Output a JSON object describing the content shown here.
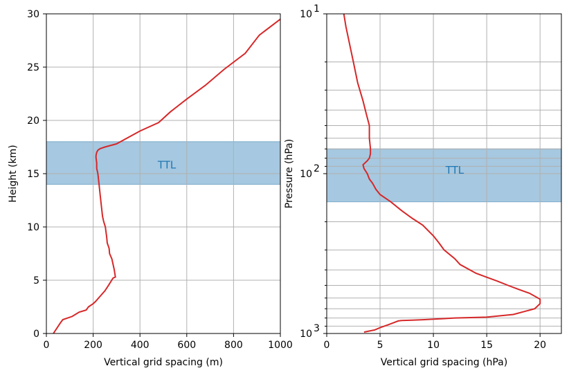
{
  "chart_data": [
    {
      "type": "line",
      "xlabel": "Vertical grid spacing (m)",
      "ylabel": "Height (km)",
      "xlim": [
        0,
        1000
      ],
      "ylim": [
        0,
        30
      ],
      "yscale": "linear",
      "grid": true,
      "xticks": [
        0,
        200,
        400,
        600,
        800,
        1000
      ],
      "yticks": [
        0,
        5,
        10,
        15,
        20,
        25,
        30
      ],
      "xtick_labels": [
        "0",
        "200",
        "400",
        "600",
        "800",
        "1000"
      ],
      "ytick_labels": [
        "0",
        "5",
        "10",
        "15",
        "20",
        "25",
        "30"
      ],
      "band": {
        "label": "TTL",
        "from": 14,
        "to": 18,
        "color": "#a6c8e0",
        "edge_color": "#7aaacb",
        "label_color": "#1f77b4",
        "label_x": 515,
        "label_y": 15.8
      },
      "series": [
        {
          "color": "#d62728",
          "x": [
            30,
            45,
            60,
            70,
            110,
            140,
            170,
            180,
            200,
            210,
            230,
            250,
            265,
            285,
            295,
            290,
            285,
            280,
            270,
            268,
            260,
            258,
            255,
            252,
            245,
            240,
            235,
            230,
            225,
            220,
            215,
            215,
            212,
            212,
            215,
            220,
            230,
            250,
            300,
            400,
            480,
            530,
            600,
            680,
            760,
            850,
            910,
            1000
          ],
          "y": [
            0,
            0.5,
            1.0,
            1.3,
            1.6,
            2.0,
            2.2,
            2.5,
            2.8,
            3.0,
            3.5,
            4.0,
            4.5,
            5.2,
            5.3,
            6.0,
            6.5,
            7.0,
            7.5,
            8.0,
            8.5,
            9.0,
            9.5,
            10.0,
            10.5,
            11.0,
            12.0,
            13.0,
            14.0,
            15.0,
            15.5,
            16.0,
            16.5,
            16.7,
            17.0,
            17.2,
            17.35,
            17.5,
            17.8,
            19.0,
            19.8,
            20.8,
            22.0,
            23.3,
            24.8,
            26.3,
            28.0,
            29.5
          ]
        }
      ]
    },
    {
      "type": "line",
      "xlabel": "Vertical grid spacing (hPa)",
      "ylabel": "Pressure (hPa)",
      "xlim": [
        0,
        22
      ],
      "ylim": [
        1000,
        10
      ],
      "yscale": "log",
      "grid": true,
      "xticks": [
        0,
        5,
        10,
        15,
        20
      ],
      "xtick_labels": [
        "0",
        "5",
        "10",
        "15",
        "20"
      ],
      "ytick_major": [
        10,
        100,
        1000
      ],
      "ytick_labels": [
        "10",
        "10",
        "10"
      ],
      "ytick_exponents": [
        "1",
        "2",
        "3"
      ],
      "ytick_minor": [
        20,
        30,
        40,
        50,
        60,
        70,
        80,
        90,
        200,
        300,
        400,
        500,
        600,
        700,
        800,
        900
      ],
      "band": {
        "label": "TTL",
        "from": 150,
        "to": 70,
        "color": "#a6c8e0",
        "edge_color": "#7aaacb",
        "label_color": "#1f77b4",
        "label_x": 12,
        "label_y": 95
      },
      "series": [
        {
          "color": "#d62728",
          "x": [
            1.6,
            1.8,
            2.1,
            2.5,
            2.9,
            3.4,
            3.7,
            4.0,
            4.0,
            4.1,
            4.1,
            4.0,
            3.8,
            3.4,
            3.5,
            3.8,
            4.0,
            4.3,
            4.6,
            5.0,
            6.0,
            7.0,
            8.0,
            9.0,
            10.0,
            10.5,
            11.0,
            12.0,
            12.5,
            14.0,
            14.8,
            16.0,
            17.0,
            18.0,
            19.0,
            20.0,
            20.0,
            19.5,
            17.5,
            15.0,
            12.0,
            10.5,
            9.0,
            8.0,
            7.0,
            6.7,
            6.4,
            5.8,
            5.0,
            4.5,
            3.5
          ],
          "y": [
            10,
            12,
            15,
            20,
            27,
            35,
            42,
            50,
            60,
            70,
            75,
            80,
            83,
            88,
            93,
            100,
            108,
            115,
            125,
            135,
            150,
            170,
            190,
            210,
            245,
            270,
            300,
            340,
            370,
            420,
            440,
            470,
            500,
            530,
            560,
            610,
            650,
            700,
            760,
            790,
            800,
            810,
            820,
            825,
            830,
            835,
            850,
            880,
            920,
            950,
            980
          ]
        }
      ]
    }
  ]
}
